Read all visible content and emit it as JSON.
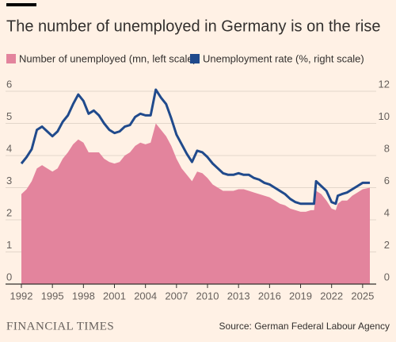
{
  "chart_data": {
    "type": "area",
    "title": "The number of unemployed in Germany is on the rise",
    "source": "Source: German Federal Labour Agency",
    "brand": "FINANCIAL TIMES",
    "x": [
      1992.0,
      1992.5,
      1993.0,
      1993.5,
      1994.0,
      1994.5,
      1995.0,
      1995.5,
      1996.0,
      1996.5,
      1997.0,
      1997.5,
      1998.0,
      1998.5,
      1999.0,
      1999.5,
      2000.0,
      2000.5,
      2001.0,
      2001.5,
      2002.0,
      2002.5,
      2003.0,
      2003.5,
      2004.0,
      2004.5,
      2005.0,
      2005.5,
      2006.0,
      2006.5,
      2007.0,
      2007.5,
      2008.0,
      2008.5,
      2009.0,
      2009.5,
      2010.0,
      2010.5,
      2011.0,
      2011.5,
      2012.0,
      2012.5,
      2013.0,
      2013.5,
      2014.0,
      2014.5,
      2015.0,
      2015.5,
      2016.0,
      2016.5,
      2017.0,
      2017.5,
      2018.0,
      2018.5,
      2019.0,
      2019.5,
      2020.0,
      2020.3,
      2020.5,
      2021.0,
      2021.5,
      2022.0,
      2022.4,
      2022.6,
      2023.0,
      2023.5,
      2024.0,
      2024.5,
      2025.0,
      2025.7
    ],
    "series": [
      {
        "name": "Number of unemployed (mn, left scale)",
        "type": "area",
        "color": "#e3849d",
        "values": [
          2.8,
          2.95,
          3.2,
          3.6,
          3.7,
          3.6,
          3.5,
          3.6,
          3.9,
          4.1,
          4.35,
          4.5,
          4.4,
          4.1,
          4.1,
          4.1,
          3.9,
          3.8,
          3.75,
          3.8,
          4.0,
          4.1,
          4.3,
          4.4,
          4.35,
          4.4,
          5.0,
          4.8,
          4.6,
          4.3,
          3.9,
          3.6,
          3.4,
          3.2,
          3.5,
          3.45,
          3.3,
          3.1,
          3.0,
          2.9,
          2.9,
          2.9,
          2.95,
          2.95,
          2.9,
          2.85,
          2.8,
          2.75,
          2.7,
          2.6,
          2.5,
          2.45,
          2.35,
          2.3,
          2.25,
          2.25,
          2.3,
          2.3,
          2.9,
          2.8,
          2.6,
          2.35,
          2.3,
          2.5,
          2.6,
          2.6,
          2.75,
          2.85,
          2.95,
          3.0
        ]
      },
      {
        "name": "Unemployment rate (%, right scale)",
        "type": "line",
        "axis": "y2",
        "color": "#204a8c",
        "values": [
          7.5,
          7.9,
          8.4,
          9.6,
          9.8,
          9.5,
          9.2,
          9.5,
          10.1,
          10.5,
          11.2,
          11.8,
          11.4,
          10.6,
          10.8,
          10.5,
          10.0,
          9.6,
          9.4,
          9.5,
          9.8,
          9.9,
          10.4,
          10.6,
          10.5,
          10.5,
          12.1,
          11.6,
          11.2,
          10.3,
          9.3,
          8.7,
          8.1,
          7.6,
          8.3,
          8.2,
          7.9,
          7.5,
          7.2,
          6.9,
          6.8,
          6.8,
          6.9,
          6.8,
          6.8,
          6.6,
          6.5,
          6.3,
          6.2,
          6.0,
          5.8,
          5.6,
          5.3,
          5.1,
          5.0,
          5.0,
          5.0,
          5.0,
          6.4,
          6.1,
          5.8,
          5.1,
          5.0,
          5.5,
          5.6,
          5.7,
          5.9,
          6.1,
          6.3,
          6.3
        ]
      }
    ],
    "xlim": [
      1992,
      2025.7
    ],
    "xticks": [
      1992,
      1995,
      1998,
      2001,
      2004,
      2007,
      2010,
      2013,
      2016,
      2019,
      2022,
      2025
    ],
    "ylim": [
      0,
      6
    ],
    "yticks": [
      0,
      1,
      2,
      3,
      4,
      5,
      6
    ],
    "y2lim": [
      0,
      12
    ],
    "y2ticks": [
      0,
      2,
      4,
      6,
      8,
      10,
      12
    ],
    "grid": true
  }
}
